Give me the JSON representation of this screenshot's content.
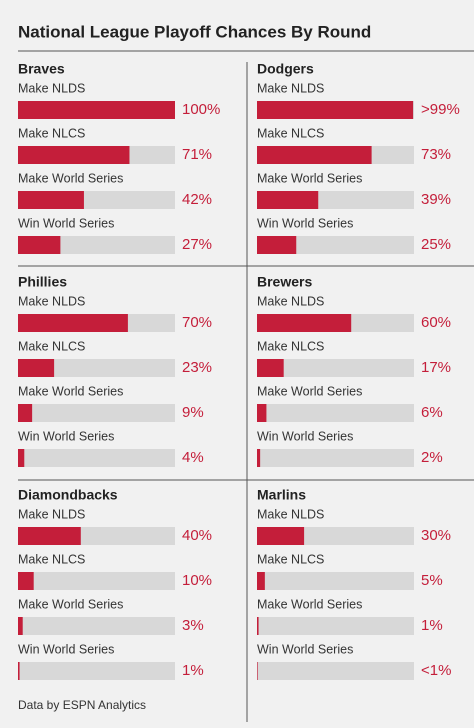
{
  "title": "National League Playoff Chances By Round",
  "source": "Data by ESPN Analytics",
  "chart_data": [
    {
      "type": "bar",
      "title": "Braves",
      "categories": [
        "Make NLDS",
        "Make NLCS",
        "Make World Series",
        "Win World Series"
      ],
      "values": [
        100,
        71,
        42,
        27
      ],
      "value_labels": [
        "100%",
        "71%",
        "42%",
        "27%"
      ],
      "xlim": [
        0,
        100
      ],
      "color": "#c41e3a"
    },
    {
      "type": "bar",
      "title": "Dodgers",
      "categories": [
        "Make NLDS",
        "Make NLCS",
        "Make World Series",
        "Win World Series"
      ],
      "values": [
        99.4,
        73,
        39,
        25
      ],
      "value_labels": [
        ">99%",
        "73%",
        "39%",
        "25%"
      ],
      "xlim": [
        0,
        100
      ],
      "color": "#c41e3a"
    },
    {
      "type": "bar",
      "title": "Phillies",
      "categories": [
        "Make NLDS",
        "Make NLCS",
        "Make World Series",
        "Win World Series"
      ],
      "values": [
        70,
        23,
        9,
        4
      ],
      "value_labels": [
        "70%",
        "23%",
        "9%",
        "4%"
      ],
      "xlim": [
        0,
        100
      ],
      "color": "#c41e3a"
    },
    {
      "type": "bar",
      "title": "Brewers",
      "categories": [
        "Make NLDS",
        "Make NLCS",
        "Make World Series",
        "Win World Series"
      ],
      "values": [
        60,
        17,
        6,
        2
      ],
      "value_labels": [
        "60%",
        "17%",
        "6%",
        "2%"
      ],
      "xlim": [
        0,
        100
      ],
      "color": "#c41e3a"
    },
    {
      "type": "bar",
      "title": "Diamondbacks",
      "categories": [
        "Make NLDS",
        "Make NLCS",
        "Make World Series",
        "Win World Series"
      ],
      "values": [
        40,
        10,
        3,
        1
      ],
      "value_labels": [
        "40%",
        "10%",
        "3%",
        "1%"
      ],
      "xlim": [
        0,
        100
      ],
      "color": "#c41e3a"
    },
    {
      "type": "bar",
      "title": "Marlins",
      "categories": [
        "Make NLDS",
        "Make NLCS",
        "Make World Series",
        "Win World Series"
      ],
      "values": [
        30,
        5,
        1,
        0.4
      ],
      "value_labels": [
        "30%",
        "5%",
        "1%",
        "<1%"
      ],
      "xlim": [
        0,
        100
      ],
      "color": "#c41e3a"
    }
  ]
}
